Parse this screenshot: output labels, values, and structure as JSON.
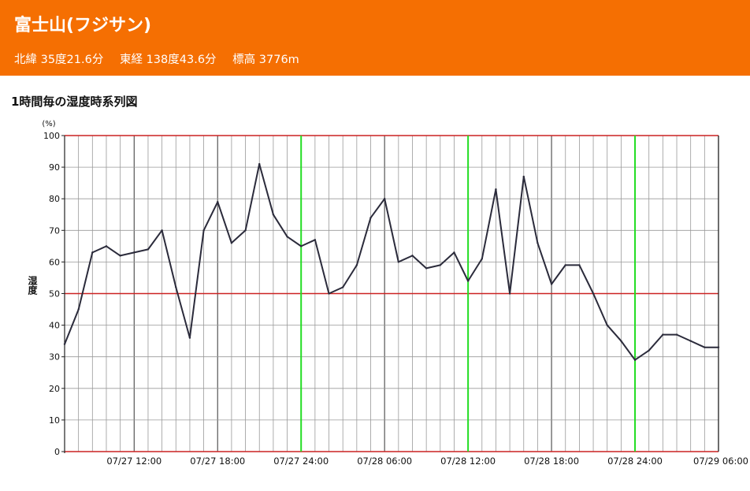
{
  "header": {
    "title": "富士山(フジサン)",
    "latitude": "北緯 35度21.6分",
    "longitude": "東経 138度43.6分",
    "elevation": "標高 3776m"
  },
  "chart_heading": "1時間毎の湿度時系列図",
  "colors": {
    "header_bg": "#f56f02",
    "line": "#2b2b3b",
    "grid_minor": "#999999",
    "grid_major": "#555555",
    "red_line": "#cc2222",
    "green_line": "#22dd22"
  },
  "chart_data": {
    "type": "line",
    "title": "1時間毎の湿度時系列図",
    "ylabel": "湿度",
    "yunit": "(%)",
    "ylim": [
      0,
      100
    ],
    "yticks": [
      0,
      10,
      20,
      30,
      40,
      50,
      60,
      70,
      80,
      90,
      100
    ],
    "red_y_lines": [
      0,
      50,
      100
    ],
    "x_start": "07/27 07:00",
    "x_end": "07/29 06:00",
    "xtick_labels": [
      "07/27 12:00",
      "07/27 18:00",
      "07/27 24:00",
      "07/28 06:00",
      "07/28 12:00",
      "07/28 18:00",
      "07/28 24:00",
      "07/29 06:00"
    ],
    "xtick_hours_from_start": [
      5,
      11,
      17,
      23,
      29,
      35,
      41,
      47
    ],
    "green_x_labels": [
      "07/27 24:00",
      "07/28 12:00",
      "07/28 24:00"
    ],
    "green_hours_from_start": [
      17,
      29,
      41
    ],
    "series": [
      {
        "values": [
          34,
          45,
          63,
          65,
          62,
          63,
          64,
          70,
          52,
          36,
          70,
          79,
          66,
          70,
          91,
          75,
          68,
          65,
          67,
          50,
          52,
          59,
          74,
          80,
          60,
          62,
          58,
          59,
          63,
          54,
          61,
          83,
          50,
          87,
          66,
          53,
          59,
          59,
          50,
          40,
          35,
          29,
          32,
          37,
          37,
          35,
          33,
          33
        ]
      }
    ]
  }
}
